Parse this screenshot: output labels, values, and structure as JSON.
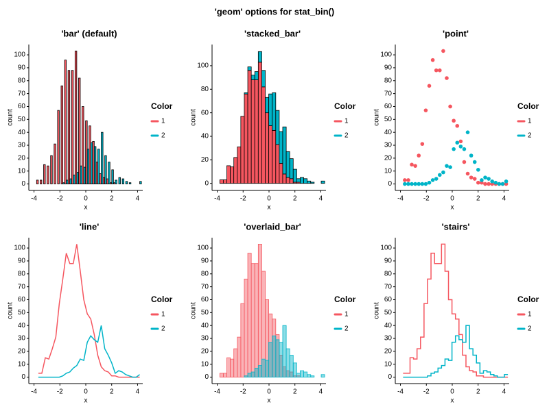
{
  "title": "'geom' options for stat_bin()",
  "chart_data": [
    {
      "type": "histogram",
      "geom": "bar",
      "title": "'bar' (default)",
      "xlabel": "x",
      "ylabel": "count",
      "legend_title": "Color",
      "bins": [
        -3.8,
        -3.53,
        -3.26,
        -2.99,
        -2.72,
        -2.45,
        -2.18,
        -1.91,
        -1.64,
        -1.37,
        -1.1,
        -0.83,
        -0.56,
        -0.29,
        -0.02,
        0.25,
        0.52,
        0.79,
        1.06,
        1.33,
        1.6,
        1.87,
        2.14,
        2.41,
        2.68,
        2.95,
        3.22,
        3.49,
        3.76,
        4.03,
        4.3
      ],
      "series": [
        {
          "name": "1",
          "color": "#f5565f",
          "values": [
            3,
            3,
            15,
            14,
            22,
            31,
            57,
            76,
            96,
            88,
            88,
            103,
            82,
            60,
            49,
            45,
            33,
            17,
            8,
            5,
            4,
            1,
            1,
            0,
            0,
            0,
            0,
            0,
            0,
            0
          ]
        },
        {
          "name": "2",
          "color": "#00b4c8",
          "values": [
            0,
            0,
            0,
            0,
            0,
            0,
            0,
            1,
            3,
            4,
            7,
            9,
            14,
            13,
            27,
            32,
            29,
            27,
            40,
            22,
            17,
            11,
            3,
            5,
            4,
            2,
            1,
            0,
            0,
            2
          ]
        }
      ],
      "xlim": [
        -4.4,
        4.4
      ],
      "xticks": [
        -4,
        -2,
        0,
        2,
        4
      ],
      "ylim": [
        -5,
        108
      ],
      "yticks": [
        0,
        10,
        20,
        30,
        40,
        50,
        60,
        70,
        80,
        90,
        100
      ]
    },
    {
      "type": "histogram",
      "geom": "stacked_bar",
      "title": "'stacked_bar'",
      "xlabel": "x",
      "ylabel": "count",
      "legend_title": "Color",
      "bins": [
        -3.8,
        -3.53,
        -3.26,
        -2.99,
        -2.72,
        -2.45,
        -2.18,
        -1.91,
        -1.64,
        -1.37,
        -1.1,
        -0.83,
        -0.56,
        -0.29,
        -0.02,
        0.25,
        0.52,
        0.79,
        1.06,
        1.33,
        1.6,
        1.87,
        2.14,
        2.41,
        2.68,
        2.95,
        3.22,
        3.49,
        3.76,
        4.03,
        4.3
      ],
      "series": [
        {
          "name": "1",
          "color": "#f5565f",
          "values": [
            3,
            3,
            15,
            14,
            22,
            31,
            57,
            76,
            96,
            88,
            88,
            103,
            82,
            60,
            49,
            45,
            33,
            17,
            8,
            5,
            4,
            1,
            1,
            0,
            0,
            0,
            0,
            0,
            0,
            0
          ]
        },
        {
          "name": "2",
          "color": "#00b4c8",
          "values": [
            0,
            0,
            0,
            0,
            0,
            0,
            0,
            1,
            3,
            4,
            7,
            9,
            14,
            13,
            27,
            32,
            29,
            27,
            40,
            22,
            17,
            11,
            3,
            5,
            4,
            2,
            1,
            0,
            0,
            2
          ]
        }
      ],
      "xlim": [
        -4.4,
        4.4
      ],
      "xticks": [
        -4,
        -2,
        0,
        2,
        4
      ],
      "ylim": [
        -6,
        118
      ],
      "yticks": [
        0,
        20,
        40,
        60,
        80,
        100
      ]
    },
    {
      "type": "histogram",
      "geom": "point",
      "title": "'point'",
      "xlabel": "x",
      "ylabel": "count",
      "legend_title": "Color",
      "bins": [
        -3.8,
        -3.53,
        -3.26,
        -2.99,
        -2.72,
        -2.45,
        -2.18,
        -1.91,
        -1.64,
        -1.37,
        -1.1,
        -0.83,
        -0.56,
        -0.29,
        -0.02,
        0.25,
        0.52,
        0.79,
        1.06,
        1.33,
        1.6,
        1.87,
        2.14,
        2.41,
        2.68,
        2.95,
        3.22,
        3.49,
        3.76,
        4.03,
        4.3
      ],
      "series": [
        {
          "name": "1",
          "color": "#f5565f",
          "values": [
            3,
            3,
            15,
            14,
            22,
            31,
            57,
            76,
            96,
            88,
            88,
            103,
            82,
            60,
            49,
            45,
            33,
            17,
            8,
            5,
            4,
            1,
            1,
            0,
            0,
            0,
            0,
            0,
            0,
            0
          ]
        },
        {
          "name": "2",
          "color": "#00b4c8",
          "values": [
            0,
            0,
            0,
            0,
            0,
            0,
            0,
            1,
            3,
            4,
            7,
            9,
            14,
            13,
            27,
            32,
            29,
            27,
            40,
            22,
            17,
            11,
            3,
            5,
            4,
            2,
            1,
            0,
            0,
            2
          ]
        }
      ],
      "xlim": [
        -4.4,
        4.4
      ],
      "xticks": [
        -4,
        -2,
        0,
        2,
        4
      ],
      "ylim": [
        -5,
        108
      ],
      "yticks": [
        0,
        10,
        20,
        30,
        40,
        50,
        60,
        70,
        80,
        90,
        100
      ]
    },
    {
      "type": "histogram",
      "geom": "line",
      "title": "'line'",
      "xlabel": "x",
      "ylabel": "count",
      "legend_title": "Color",
      "bins": [
        -3.8,
        -3.53,
        -3.26,
        -2.99,
        -2.72,
        -2.45,
        -2.18,
        -1.91,
        -1.64,
        -1.37,
        -1.1,
        -0.83,
        -0.56,
        -0.29,
        -0.02,
        0.25,
        0.52,
        0.79,
        1.06,
        1.33,
        1.6,
        1.87,
        2.14,
        2.41,
        2.68,
        2.95,
        3.22,
        3.49,
        3.76,
        4.03,
        4.3
      ],
      "series": [
        {
          "name": "1",
          "color": "#f5565f",
          "values": [
            3,
            3,
            15,
            14,
            22,
            31,
            57,
            76,
            96,
            88,
            88,
            103,
            82,
            60,
            49,
            45,
            33,
            17,
            8,
            5,
            4,
            1,
            1,
            0,
            0,
            0,
            0,
            0,
            0,
            0
          ]
        },
        {
          "name": "2",
          "color": "#00b4c8",
          "values": [
            0,
            0,
            0,
            0,
            0,
            0,
            0,
            1,
            3,
            4,
            7,
            9,
            14,
            13,
            27,
            32,
            29,
            27,
            40,
            22,
            17,
            11,
            3,
            5,
            4,
            2,
            1,
            0,
            0,
            2
          ]
        }
      ],
      "xlim": [
        -4.4,
        4.4
      ],
      "xticks": [
        -4,
        -2,
        0,
        2,
        4
      ],
      "ylim": [
        -5,
        108
      ],
      "yticks": [
        0,
        10,
        20,
        30,
        40,
        50,
        60,
        70,
        80,
        90,
        100
      ]
    },
    {
      "type": "histogram",
      "geom": "overlaid_bar",
      "title": "'overlaid_bar'",
      "xlabel": "x",
      "ylabel": "count",
      "legend_title": "Color",
      "bins": [
        -3.8,
        -3.53,
        -3.26,
        -2.99,
        -2.72,
        -2.45,
        -2.18,
        -1.91,
        -1.64,
        -1.37,
        -1.1,
        -0.83,
        -0.56,
        -0.29,
        -0.02,
        0.25,
        0.52,
        0.79,
        1.06,
        1.33,
        1.6,
        1.87,
        2.14,
        2.41,
        2.68,
        2.95,
        3.22,
        3.49,
        3.76,
        4.03,
        4.3
      ],
      "series": [
        {
          "name": "1",
          "color": "#f5565f",
          "values": [
            3,
            3,
            15,
            14,
            22,
            31,
            57,
            76,
            96,
            88,
            88,
            103,
            82,
            60,
            49,
            45,
            33,
            17,
            8,
            5,
            4,
            1,
            1,
            0,
            0,
            0,
            0,
            0,
            0,
            0
          ]
        },
        {
          "name": "2",
          "color": "#00b4c8",
          "values": [
            0,
            0,
            0,
            0,
            0,
            0,
            0,
            1,
            3,
            4,
            7,
            9,
            14,
            13,
            27,
            32,
            29,
            27,
            40,
            22,
            17,
            11,
            3,
            5,
            4,
            2,
            1,
            0,
            0,
            2
          ]
        }
      ],
      "xlim": [
        -4.4,
        4.4
      ],
      "xticks": [
        -4,
        -2,
        0,
        2,
        4
      ],
      "ylim": [
        -5,
        108
      ],
      "yticks": [
        0,
        10,
        20,
        30,
        40,
        50,
        60,
        70,
        80,
        90,
        100
      ]
    },
    {
      "type": "histogram",
      "geom": "stairs",
      "title": "'stairs'",
      "xlabel": "x",
      "ylabel": "count",
      "legend_title": "Color",
      "bins": [
        -3.8,
        -3.53,
        -3.26,
        -2.99,
        -2.72,
        -2.45,
        -2.18,
        -1.91,
        -1.64,
        -1.37,
        -1.1,
        -0.83,
        -0.56,
        -0.29,
        -0.02,
        0.25,
        0.52,
        0.79,
        1.06,
        1.33,
        1.6,
        1.87,
        2.14,
        2.41,
        2.68,
        2.95,
        3.22,
        3.49,
        3.76,
        4.03,
        4.3
      ],
      "series": [
        {
          "name": "1",
          "color": "#f5565f",
          "values": [
            3,
            3,
            15,
            14,
            22,
            31,
            57,
            76,
            96,
            88,
            88,
            103,
            82,
            60,
            49,
            45,
            33,
            17,
            8,
            5,
            4,
            1,
            1,
            0,
            0,
            0,
            0,
            0,
            0,
            0
          ]
        },
        {
          "name": "2",
          "color": "#00b4c8",
          "values": [
            0,
            0,
            0,
            0,
            0,
            0,
            0,
            1,
            3,
            4,
            7,
            9,
            14,
            13,
            27,
            32,
            29,
            27,
            40,
            22,
            17,
            11,
            3,
            5,
            4,
            2,
            1,
            0,
            0,
            2
          ]
        }
      ],
      "xlim": [
        -4.4,
        4.4
      ],
      "xticks": [
        -4,
        -2,
        0,
        2,
        4
      ],
      "ylim": [
        -5,
        108
      ],
      "yticks": [
        0,
        10,
        20,
        30,
        40,
        50,
        60,
        70,
        80,
        90,
        100
      ]
    }
  ]
}
